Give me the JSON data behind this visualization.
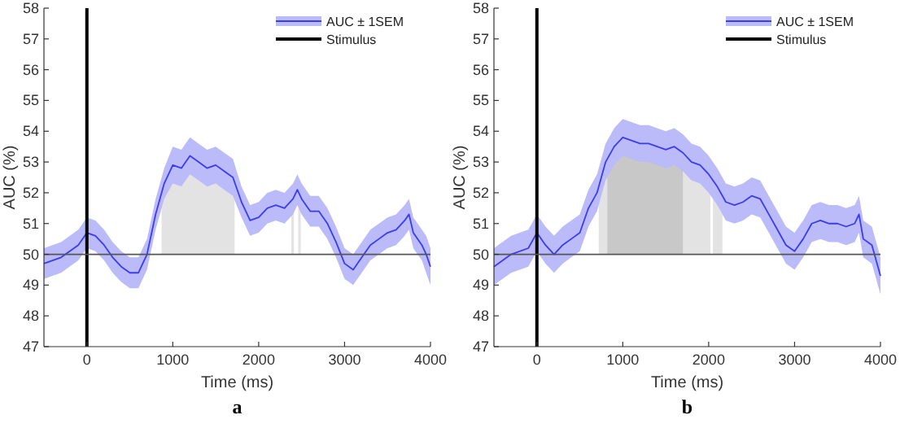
{
  "chart_data": [
    {
      "type": "line",
      "title": "a",
      "xlabel": "Time (ms)",
      "ylabel": "AUC (%)",
      "xlim": [
        -500,
        4000
      ],
      "xticks": [
        0,
        1000,
        2000,
        3000,
        4000
      ],
      "ylim": [
        47,
        58
      ],
      "yticks": [
        47,
        48,
        49,
        50,
        51,
        52,
        53,
        54,
        55,
        56,
        57,
        58
      ],
      "legend": "top right",
      "x": [
        -500,
        -300,
        -100,
        0,
        100,
        200,
        300,
        400,
        500,
        600,
        700,
        800,
        900,
        1000,
        1100,
        1200,
        1300,
        1400,
        1500,
        1600,
        1700,
        1800,
        1900,
        2000,
        2100,
        2200,
        2300,
        2400,
        2450,
        2500,
        2600,
        2700,
        2800,
        2900,
        3000,
        3100,
        3200,
        3300,
        3400,
        3500,
        3600,
        3700,
        3750,
        3800,
        3900,
        3950,
        4000
      ],
      "series": [
        {
          "name": "AUC ± 1SEM",
          "color": "#3b3bf0",
          "values": [
            49.7,
            49.9,
            50.3,
            50.7,
            50.6,
            50.3,
            49.9,
            49.6,
            49.4,
            49.4,
            50.0,
            51.3,
            52.3,
            52.9,
            52.8,
            53.2,
            53.0,
            52.8,
            52.9,
            52.7,
            52.5,
            51.7,
            51.1,
            51.2,
            51.5,
            51.6,
            51.5,
            51.8,
            52.1,
            51.8,
            51.4,
            51.4,
            51.0,
            50.4,
            49.7,
            49.5,
            49.9,
            50.3,
            50.5,
            50.7,
            50.8,
            51.1,
            51.3,
            50.7,
            50.3,
            50.0,
            49.6
          ],
          "lower": [
            49.2,
            49.4,
            49.8,
            50.2,
            50.1,
            49.8,
            49.4,
            49.1,
            48.9,
            48.9,
            49.5,
            50.8,
            51.8,
            52.3,
            52.2,
            52.6,
            52.4,
            52.2,
            52.3,
            52.1,
            51.9,
            51.2,
            50.6,
            50.7,
            51.0,
            51.1,
            51.0,
            51.3,
            51.6,
            51.3,
            50.9,
            50.9,
            50.5,
            49.9,
            49.2,
            49.0,
            49.4,
            49.8,
            50.0,
            50.2,
            50.3,
            50.6,
            50.8,
            50.2,
            49.8,
            49.4,
            49.0
          ],
          "upper": [
            50.2,
            50.4,
            50.8,
            51.2,
            51.1,
            50.8,
            50.4,
            50.1,
            49.9,
            49.9,
            50.5,
            51.8,
            52.8,
            53.5,
            53.4,
            53.8,
            53.6,
            53.4,
            53.5,
            53.3,
            53.1,
            52.2,
            51.6,
            51.7,
            52.0,
            52.1,
            52.0,
            52.3,
            52.6,
            52.3,
            51.9,
            51.9,
            51.5,
            50.9,
            50.2,
            50.0,
            50.4,
            50.8,
            51.0,
            51.2,
            51.3,
            51.6,
            51.8,
            51.2,
            50.8,
            50.6,
            50.2
          ]
        }
      ],
      "ref_lines": [
        {
          "axis": "x",
          "value": 0,
          "label": "Stimulus",
          "color": "#000000"
        },
        {
          "axis": "y",
          "value": 50,
          "color": "#555555"
        }
      ],
      "bands": [
        {
          "axis": "x",
          "from": 870,
          "to": 1720,
          "color": "#e3e3e3"
        },
        {
          "axis": "x",
          "from": 2380,
          "to": 2410,
          "color": "#e3e3e3"
        },
        {
          "axis": "x",
          "from": 2460,
          "to": 2490,
          "color": "#e3e3e3"
        }
      ]
    },
    {
      "type": "line",
      "title": "b",
      "xlabel": "Time (ms)",
      "ylabel": "AUC (%)",
      "xlim": [
        -500,
        4000
      ],
      "xticks": [
        0,
        1000,
        2000,
        3000,
        4000
      ],
      "ylim": [
        47,
        58
      ],
      "yticks": [
        47,
        48,
        49,
        50,
        51,
        52,
        53,
        54,
        55,
        56,
        57,
        58
      ],
      "legend": "top right",
      "x": [
        -500,
        -300,
        -100,
        0,
        100,
        200,
        300,
        400,
        500,
        600,
        700,
        800,
        900,
        1000,
        1100,
        1200,
        1300,
        1400,
        1500,
        1600,
        1700,
        1800,
        1900,
        2000,
        2100,
        2200,
        2300,
        2400,
        2500,
        2600,
        2700,
        2800,
        2900,
        3000,
        3100,
        3200,
        3300,
        3400,
        3500,
        3600,
        3700,
        3750,
        3800,
        3900,
        4000
      ],
      "series": [
        {
          "name": "AUC ± 1SEM",
          "color": "#3b3bf0",
          "values": [
            49.6,
            50.0,
            50.2,
            50.7,
            50.3,
            50.0,
            50.3,
            50.5,
            50.7,
            51.5,
            52.0,
            53.0,
            53.5,
            53.8,
            53.7,
            53.6,
            53.6,
            53.5,
            53.4,
            53.5,
            53.3,
            53.0,
            52.9,
            52.6,
            52.2,
            51.7,
            51.6,
            51.7,
            51.9,
            51.8,
            51.3,
            50.8,
            50.3,
            50.1,
            50.5,
            51.0,
            51.1,
            51.0,
            51.0,
            50.9,
            51.0,
            51.3,
            50.5,
            50.3,
            49.3
          ],
          "lower": [
            49.0,
            49.4,
            49.6,
            50.1,
            49.7,
            49.4,
            49.7,
            49.9,
            50.1,
            50.9,
            51.4,
            52.4,
            52.9,
            53.2,
            53.1,
            53.0,
            53.0,
            52.9,
            52.8,
            52.9,
            52.7,
            52.4,
            52.3,
            52.0,
            51.6,
            51.1,
            51.0,
            51.1,
            51.3,
            51.2,
            50.7,
            50.2,
            49.7,
            49.5,
            49.9,
            50.4,
            50.5,
            50.4,
            50.4,
            50.3,
            50.4,
            50.7,
            49.9,
            49.7,
            48.7
          ],
          "upper": [
            50.2,
            50.6,
            50.8,
            51.3,
            50.9,
            50.6,
            50.9,
            51.1,
            51.3,
            52.1,
            52.6,
            53.6,
            54.1,
            54.4,
            54.3,
            54.2,
            54.2,
            54.1,
            54.0,
            54.1,
            53.9,
            53.6,
            53.5,
            53.2,
            52.8,
            52.3,
            52.2,
            52.3,
            52.5,
            52.4,
            51.9,
            51.4,
            50.9,
            50.7,
            51.1,
            51.6,
            51.7,
            51.6,
            51.6,
            51.5,
            51.6,
            51.9,
            51.1,
            50.9,
            49.9
          ]
        }
      ],
      "ref_lines": [
        {
          "axis": "x",
          "value": 0,
          "label": "Stimulus",
          "color": "#000000"
        },
        {
          "axis": "y",
          "value": 50,
          "color": "#555555"
        }
      ],
      "bands": [
        {
          "axis": "x",
          "from": 720,
          "to": 2020,
          "color": "#e3e3e3"
        },
        {
          "axis": "x",
          "from": 2050,
          "to": 2160,
          "color": "#e3e3e3"
        },
        {
          "axis": "x",
          "from": 820,
          "to": 1700,
          "color": "#c8c8c8"
        }
      ]
    }
  ]
}
